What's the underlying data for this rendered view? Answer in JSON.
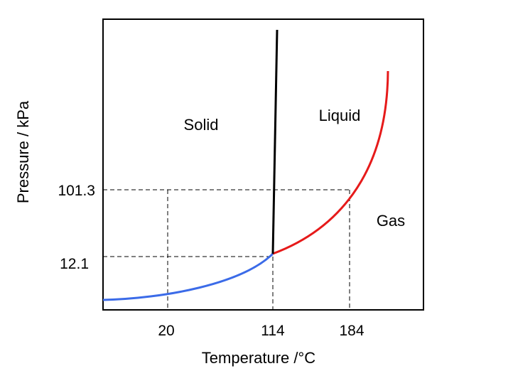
{
  "diagram": {
    "x_axis_label": "Temperature /°C",
    "y_axis_label": "Pressure / kPa",
    "x_ticks": [
      "20",
      "114",
      "184"
    ],
    "y_ticks": [
      "101.3",
      "12.1"
    ],
    "regions": {
      "solid": "Solid",
      "liquid": "Liquid",
      "gas": "Gas"
    },
    "colors": {
      "solid_gas_curve": "#3b6be8",
      "liquid_gas_curve": "#e61a1a",
      "solid_liquid_line": "#000000",
      "guide_lines": "#000000"
    }
  }
}
